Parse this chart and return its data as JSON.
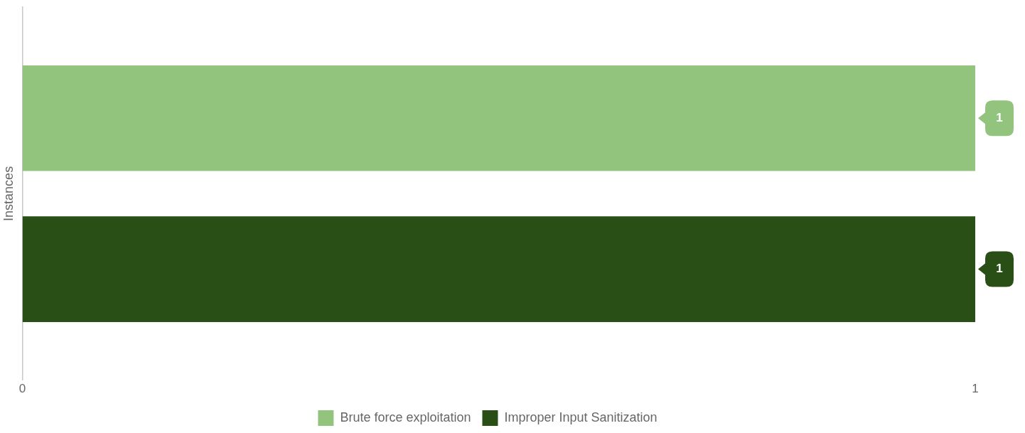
{
  "chart_data": {
    "type": "bar",
    "orientation": "horizontal",
    "ylabel": "Instances",
    "categories": [
      null
    ],
    "series": [
      {
        "name": "Brute force exploitation",
        "color": "#93c47d",
        "values": [
          1
        ]
      },
      {
        "name": "Improper Input Sanitization",
        "color": "#294f17",
        "values": [
          1
        ]
      }
    ],
    "xlim": [
      0,
      1
    ],
    "xticks": [
      0,
      1
    ],
    "data_labels": true,
    "legend": "bottom",
    "grid": false
  }
}
